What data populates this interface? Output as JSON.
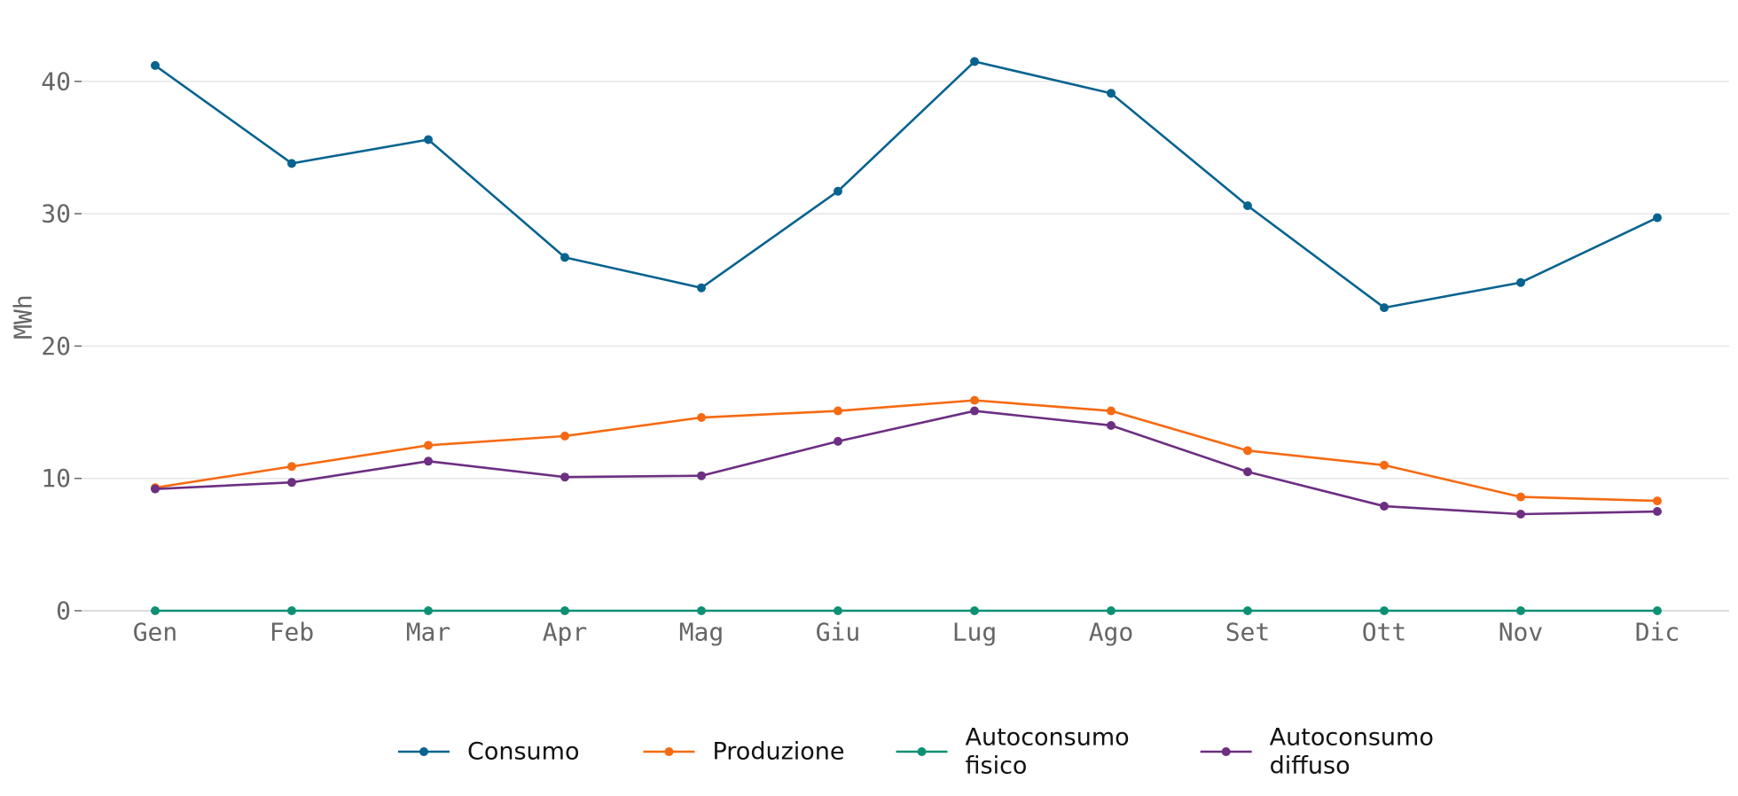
{
  "chart_data": {
    "type": "line",
    "title": "",
    "xlabel": "",
    "ylabel": "MWh",
    "categories": [
      "Gen",
      "Feb",
      "Mar",
      "Apr",
      "Mag",
      "Giu",
      "Lug",
      "Ago",
      "Set",
      "Ott",
      "Nov",
      "Dic"
    ],
    "ylim": [
      0,
      45
    ],
    "yticks": [
      0,
      10,
      20,
      30,
      40
    ],
    "grid": true,
    "legend_position": "bottom-center",
    "series": [
      {
        "name": "Consumo",
        "color": "#08638f",
        "values": [
          41.2,
          33.8,
          35.6,
          26.7,
          24.4,
          31.7,
          41.5,
          39.1,
          30.6,
          22.9,
          24.8,
          29.7
        ]
      },
      {
        "name": "Produzione",
        "color": "#f56a12",
        "values": [
          9.3,
          10.9,
          12.5,
          13.2,
          14.6,
          15.1,
          15.9,
          15.1,
          12.1,
          11.0,
          8.6,
          8.3
        ]
      },
      {
        "name": "Autoconsumo fisico",
        "legend_lines": [
          "Autoconsumo",
          "fisico"
        ],
        "color": "#0e9074",
        "values": [
          0,
          0,
          0,
          0,
          0,
          0,
          0,
          0,
          0,
          0,
          0,
          0
        ]
      },
      {
        "name": "Autoconsumo diffuso",
        "legend_lines": [
          "Autoconsumo",
          "diffuso"
        ],
        "color": "#6c2f82",
        "values": [
          9.2,
          9.7,
          11.3,
          10.1,
          10.2,
          12.8,
          15.1,
          14.0,
          10.5,
          7.9,
          7.3,
          7.5
        ]
      }
    ]
  }
}
